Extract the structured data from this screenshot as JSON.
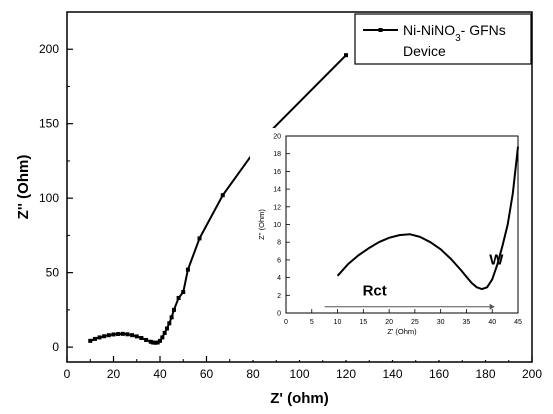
{
  "chart_data": [
    {
      "type": "line",
      "xlabel": "Z' (ohm)",
      "ylabel": "Z'' (Ohm)",
      "xlim": [
        0,
        200
      ],
      "ylim": [
        -10,
        225
      ],
      "xticks": [
        "0",
        "20",
        "40",
        "60",
        "80",
        "100",
        "120",
        "140",
        "160",
        "180",
        "200"
      ],
      "yticks": [
        "0",
        "50",
        "100",
        "150",
        "200"
      ],
      "legend": {
        "placement": "top-right",
        "entries": [
          "Ni-NiNO3- GFNs",
          "Device"
        ]
      },
      "series": [
        {
          "name": "Ni-NiNO3- GFNs Device",
          "marker": "square",
          "x": [
            10,
            12,
            14,
            16,
            18,
            20,
            22,
            24,
            26,
            28,
            30,
            32,
            34,
            36,
            37,
            38,
            39,
            40,
            41,
            42,
            43,
            44,
            45,
            46,
            48,
            50,
            52,
            57,
            67,
            85,
            120
          ],
          "y": [
            4.2,
            5.5,
            6.5,
            7.3,
            8.0,
            8.5,
            8.8,
            8.9,
            8.6,
            8.0,
            7.2,
            6.1,
            4.8,
            3.6,
            3.1,
            2.9,
            3.1,
            4.2,
            6.5,
            9.5,
            12.5,
            16,
            20,
            25,
            33,
            37,
            52,
            73,
            102,
            141,
            196
          ]
        }
      ]
    },
    {
      "type": "line",
      "xlabel": "Z' (Ohm)",
      "ylabel": "Z'' (Ohm)",
      "xlim": [
        0,
        45
      ],
      "ylim": [
        0,
        20
      ],
      "xticks": [
        "0",
        "5",
        "10",
        "15",
        "20",
        "25",
        "30",
        "35",
        "40",
        "45"
      ],
      "yticks": [
        "0",
        "2",
        "4",
        "6",
        "8",
        "10",
        "12",
        "14",
        "16",
        "18",
        "20"
      ],
      "annotations": [
        "Rct",
        "W"
      ],
      "series": [
        {
          "x": [
            10,
            12,
            14,
            16,
            18,
            20,
            22,
            24,
            26,
            28,
            30,
            32,
            34,
            35,
            36,
            37,
            38,
            39,
            40,
            41,
            42,
            43,
            44,
            45
          ],
          "y": [
            4.2,
            5.5,
            6.5,
            7.3,
            8.0,
            8.5,
            8.8,
            8.9,
            8.6,
            8.0,
            7.2,
            6.1,
            4.8,
            4.1,
            3.4,
            2.9,
            2.7,
            2.9,
            3.8,
            5.5,
            7.6,
            10,
            13.5,
            18.8
          ]
        }
      ]
    }
  ]
}
